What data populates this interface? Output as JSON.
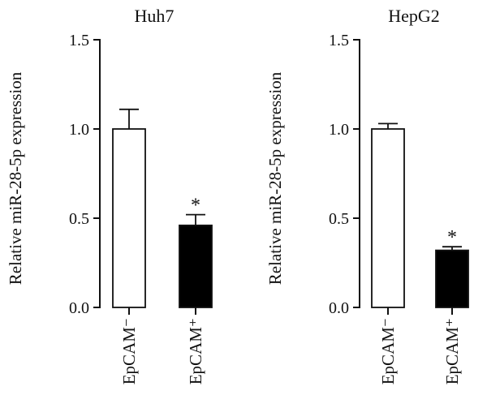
{
  "chart_data": [
    {
      "type": "bar",
      "title": "Huh7",
      "ylabel": "Relative miR-28-5p expression",
      "ylim": [
        0,
        1.5
      ],
      "yticks": [
        "0.0",
        "0.5",
        "1.0",
        "1.5"
      ],
      "categories": [
        "EpCAM⁻",
        "EpCAM⁺"
      ],
      "values": [
        1.0,
        0.46
      ],
      "errors": [
        0.11,
        0.06
      ],
      "bar_colors": [
        "#ffffff",
        "#000000"
      ],
      "significance": [
        "",
        "*"
      ],
      "grid": false
    },
    {
      "type": "bar",
      "title": "HepG2",
      "ylabel": "Relative miR-28-5p expression",
      "ylim": [
        0,
        1.5
      ],
      "yticks": [
        "0.0",
        "0.5",
        "1.0",
        "1.5"
      ],
      "categories": [
        "EpCAM⁻",
        "EpCAM⁺"
      ],
      "values": [
        1.0,
        0.32
      ],
      "errors": [
        0.03,
        0.02
      ],
      "bar_colors": [
        "#ffffff",
        "#000000"
      ],
      "significance": [
        "",
        "*"
      ],
      "grid": false
    }
  ]
}
